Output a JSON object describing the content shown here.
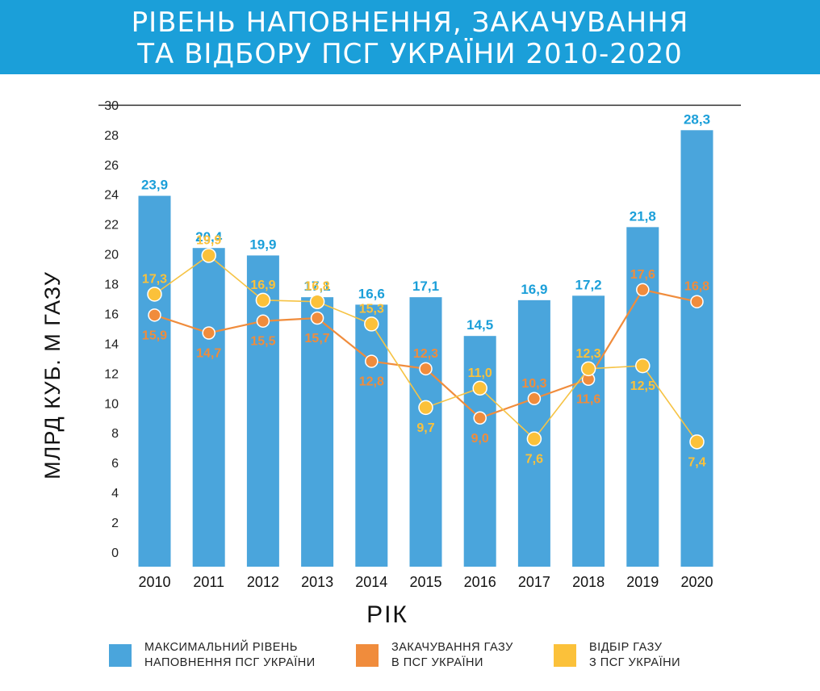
{
  "title": {
    "line1": "РІВЕНЬ НАПОВНЕННЯ, ЗАКАЧУВАННЯ",
    "line2": "ТА ВІДБОРУ ПСГ УКРАЇНИ 2010-2020"
  },
  "colors": {
    "banner": "#1b9fd9",
    "bars": "#4aa5dc",
    "bar_labels": "#1b9fd9",
    "injection": "#f08c3c",
    "withdrawal": "#fbc13a",
    "withdrawal_line": "#f6c344"
  },
  "chart_data": {
    "type": "bar",
    "title": "РІВЕНЬ НАПОВНЕННЯ, ЗАКАЧУВАННЯ ТА ВІДБОРУ ПСГ УКРАЇНИ 2010-2020",
    "xlabel": "РІК",
    "ylabel": "МЛРД КУБ. М ГАЗУ",
    "ylim": [
      0,
      30
    ],
    "yticks": [
      "0",
      "2",
      "4",
      "6",
      "8",
      "10",
      "12",
      "14",
      "16",
      "18",
      "20",
      "22",
      "24",
      "26",
      "28",
      "30"
    ],
    "categories": [
      "2010",
      "2011",
      "2012",
      "2013",
      "2014",
      "2015",
      "2016",
      "2017",
      "2018",
      "2019",
      "2020"
    ],
    "grid": false,
    "legend_position": "bottom",
    "series": [
      {
        "name": "МАКСИМАЛЬНИЙ РІВЕНЬ НАПОВНЕННЯ ПСГ УКРАЇНИ",
        "kind": "bar",
        "values": [
          23.9,
          20.4,
          19.9,
          17.1,
          16.6,
          17.1,
          14.5,
          16.9,
          17.2,
          21.8,
          28.3
        ],
        "labels": [
          "23,9",
          "20,4",
          "19,9",
          "17,1",
          "16,6",
          "17,1",
          "14,5",
          "16,9",
          "17,2",
          "21,8",
          "28,3"
        ]
      },
      {
        "name": "ЗАКАЧУВАННЯ ГАЗУ В ПСГ УКРАЇНИ",
        "kind": "line",
        "values": [
          15.9,
          14.7,
          15.5,
          15.7,
          12.8,
          12.3,
          9.0,
          10.3,
          11.6,
          17.6,
          16.8
        ],
        "labels": [
          "15,9",
          "14,7",
          "15,5",
          "15,7",
          "12,8",
          "12,3",
          "9,0",
          "10,3",
          "11,6",
          "17,6",
          "16,8"
        ]
      },
      {
        "name": "ВІДБІР ГАЗУ З ПСГ УКРАЇНИ",
        "kind": "line",
        "values": [
          17.3,
          19.9,
          16.9,
          16.8,
          15.3,
          9.7,
          11.0,
          7.6,
          12.3,
          12.5,
          7.4
        ],
        "labels": [
          "17,3",
          "19,9",
          "16,9",
          "16,8",
          "15,3",
          "9,7",
          "11,0",
          "7,6",
          "12,3",
          "12,5",
          "7,4"
        ]
      }
    ]
  },
  "legend": [
    {
      "line1": "МАКСИМАЛЬНИЙ РІВЕНЬ",
      "line2": "НАПОВНЕННЯ ПСГ УКРАЇНИ",
      "color": "#4aa5dc"
    },
    {
      "line1": "ЗАКАЧУВАННЯ ГАЗУ",
      "line2": "В ПСГ УКРАЇНИ",
      "color": "#f08c3c"
    },
    {
      "line1": "ВІДБІР ГАЗУ",
      "line2": "З ПСГ УКРАЇНИ",
      "color": "#fbc13a"
    }
  ]
}
